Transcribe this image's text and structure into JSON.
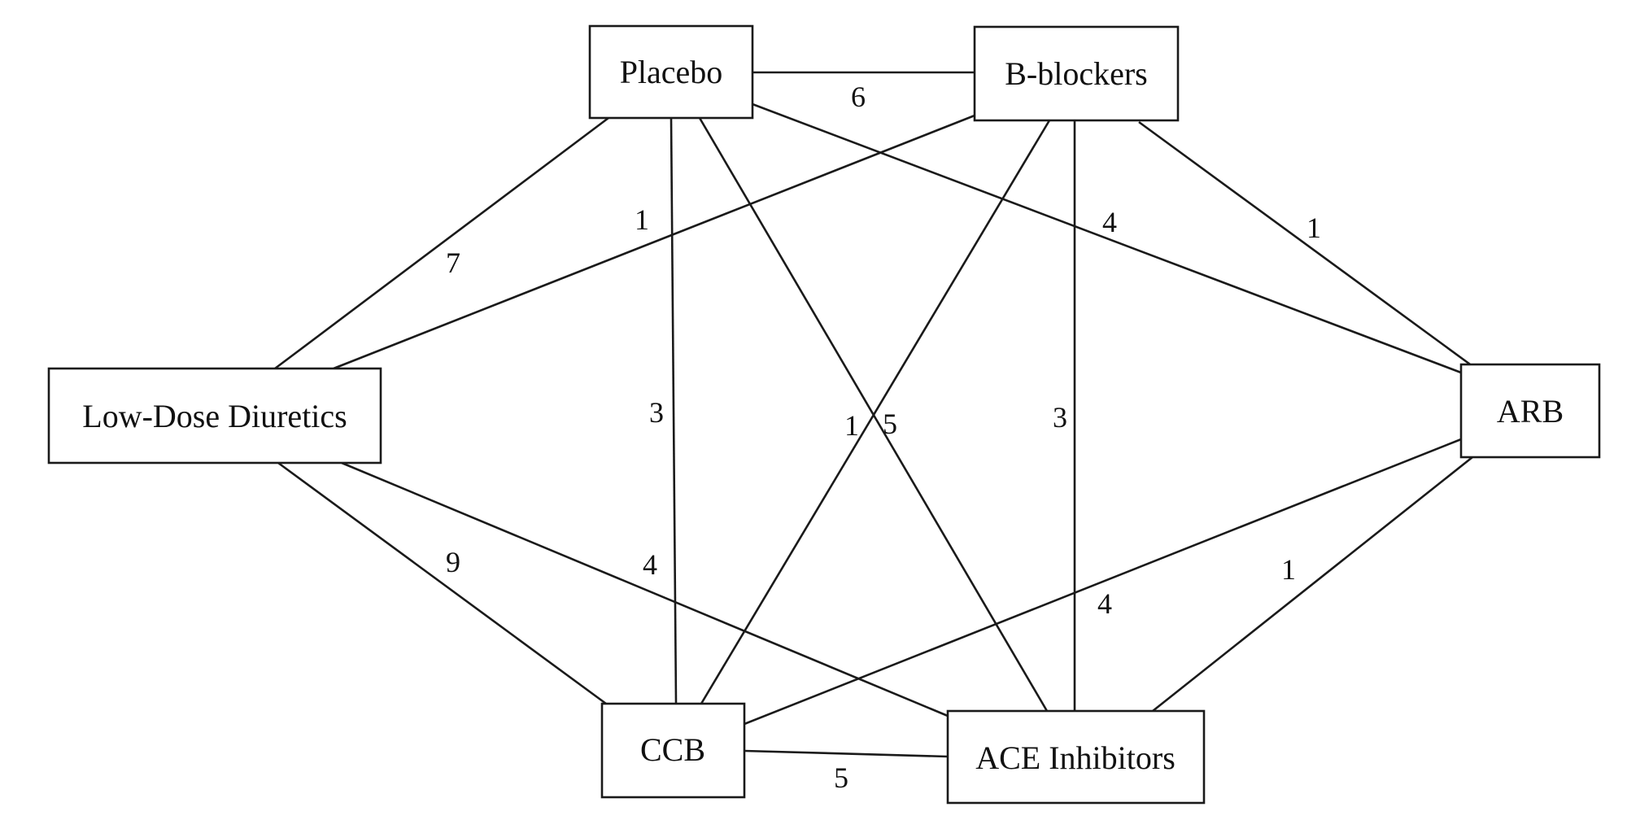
{
  "diagram": {
    "nodes": [
      {
        "id": "placebo",
        "label": "Placebo"
      },
      {
        "id": "bblockers",
        "label": "B-blockers"
      },
      {
        "id": "lowdose",
        "label": "Low-Dose Diuretics"
      },
      {
        "id": "arb",
        "label": "ARB"
      },
      {
        "id": "ccb",
        "label": "CCB"
      },
      {
        "id": "ace",
        "label": "ACE Inhibitors"
      }
    ],
    "edges": [
      {
        "from": "placebo",
        "to": "bblockers",
        "label": "6"
      },
      {
        "from": "placebo",
        "to": "lowdose",
        "label": "7"
      },
      {
        "from": "bblockers",
        "to": "lowdose",
        "label": "1"
      },
      {
        "from": "placebo",
        "to": "arb",
        "label": "4"
      },
      {
        "from": "bblockers",
        "to": "arb",
        "label": "1"
      },
      {
        "from": "placebo",
        "to": "ccb",
        "label": "3"
      },
      {
        "from": "placebo",
        "to": "ace",
        "label": "5"
      },
      {
        "from": "bblockers",
        "to": "ccb",
        "label": "1"
      },
      {
        "from": "bblockers",
        "to": "ace",
        "label": "3"
      },
      {
        "from": "lowdose",
        "to": "ccb",
        "label": "9"
      },
      {
        "from": "lowdose",
        "to": "ace",
        "label": "4"
      },
      {
        "from": "arb",
        "to": "ccb",
        "label": "4"
      },
      {
        "from": "arb",
        "to": "ace",
        "label": "1"
      },
      {
        "from": "ccb",
        "to": "ace",
        "label": "5"
      }
    ]
  }
}
